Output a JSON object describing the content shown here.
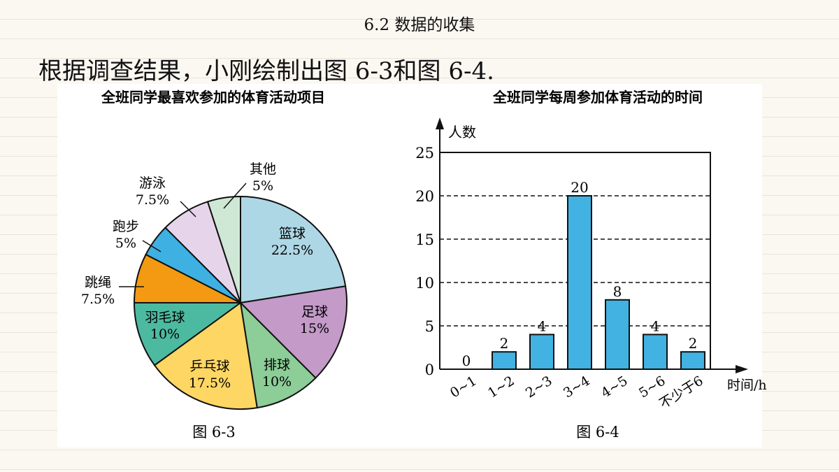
{
  "slide_title": "6.2 数据的收集",
  "heading": "根据调查结果，小刚绘制出图 6-3和图 6-4.",
  "chart_data": [
    {
      "type": "pie",
      "title": "全班同学最喜欢参加的体育活动项目",
      "caption": "图 6-3",
      "slices": [
        {
          "label": "篮球",
          "value": 22.5,
          "text": "22.5%",
          "color": "#aed7e6"
        },
        {
          "label": "足球",
          "value": 15,
          "text": "15%",
          "color": "#c39ac8"
        },
        {
          "label": "排球",
          "value": 10,
          "text": "10%",
          "color": "#8ccd98"
        },
        {
          "label": "乒乓球",
          "value": 17.5,
          "text": "17.5%",
          "color": "#fdd664"
        },
        {
          "label": "羽毛球",
          "value": 10,
          "text": "10%",
          "color": "#4cbaa0"
        },
        {
          "label": "跳绳",
          "value": 7.5,
          "text": "7.5%",
          "color": "#f39a12"
        },
        {
          "label": "跑步",
          "value": 5,
          "text": "5%",
          "color": "#3fb0e2"
        },
        {
          "label": "游泳",
          "value": 7.5,
          "text": "7.5%",
          "color": "#e6d5ea"
        },
        {
          "label": "其他",
          "value": 5,
          "text": "5%",
          "color": "#cfe8d6"
        }
      ]
    },
    {
      "type": "bar",
      "title": "全班同学每周参加体育活动的时间",
      "caption": "图 6-4",
      "ylabel": "人数",
      "xlabel": "时间/h",
      "categories": [
        "0~1",
        "1~2",
        "2~3",
        "3~4",
        "4~5",
        "5~6",
        "不少于6"
      ],
      "values": [
        0,
        2,
        4,
        20,
        8,
        4,
        2
      ],
      "ylim": [
        0,
        25
      ],
      "yticks": [
        0,
        5,
        10,
        15,
        20,
        25
      ],
      "grid": "dashed horizontal",
      "bar_color": "#41b2e2"
    }
  ]
}
